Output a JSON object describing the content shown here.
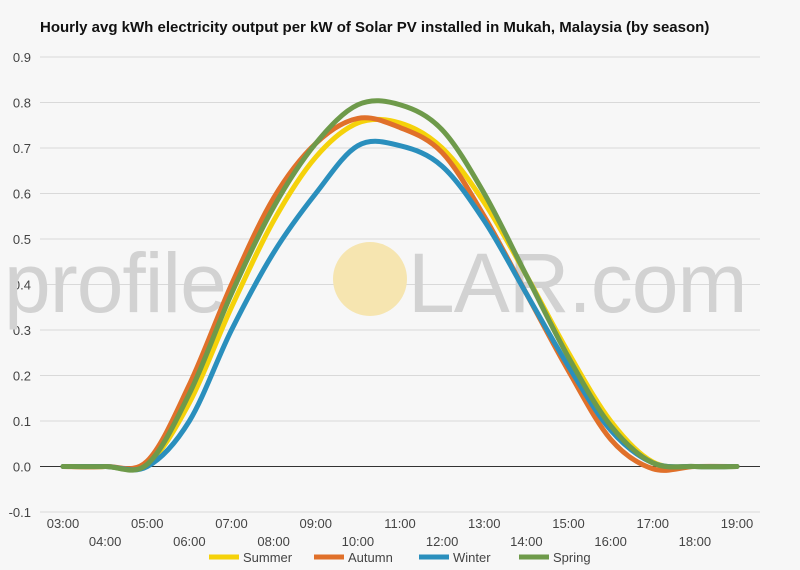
{
  "chart_data": {
    "type": "line",
    "title": "Hourly avg kWh electricity output per kW of Solar PV installed in Mukah, Malaysia (by season)",
    "xlabel": "",
    "ylabel": "",
    "categories": [
      "03:00",
      "04:00",
      "05:00",
      "06:00",
      "07:00",
      "08:00",
      "09:00",
      "10:00",
      "11:00",
      "12:00",
      "13:00",
      "14:00",
      "15:00",
      "16:00",
      "17:00",
      "18:00",
      "19:00"
    ],
    "ylim": [
      -0.1,
      0.9
    ],
    "yticks": [
      "-0.1",
      "0.0",
      "0.1",
      "0.2",
      "0.3",
      "0.4",
      "0.5",
      "0.6",
      "0.7",
      "0.8",
      "0.9"
    ],
    "grid": true,
    "legend_position": "bottom",
    "series": [
      {
        "name": "Summer",
        "color": "#f5d20a",
        "values": [
          0.0,
          0.0,
          0.005,
          0.14,
          0.35,
          0.54,
          0.68,
          0.755,
          0.755,
          0.7,
          0.58,
          0.42,
          0.25,
          0.1,
          0.01,
          0.0,
          0.0
        ]
      },
      {
        "name": "Autumn",
        "color": "#e0702a",
        "values": [
          0.0,
          0.0,
          0.012,
          0.18,
          0.4,
          0.59,
          0.71,
          0.765,
          0.745,
          0.69,
          0.55,
          0.38,
          0.21,
          0.06,
          -0.005,
          0.0,
          0.0
        ]
      },
      {
        "name": "Winter",
        "color": "#2a8fbd",
        "values": [
          0.0,
          0.0,
          0.0,
          0.1,
          0.3,
          0.47,
          0.6,
          0.705,
          0.705,
          0.66,
          0.54,
          0.38,
          0.22,
          0.08,
          0.008,
          0.0,
          0.0
        ]
      },
      {
        "name": "Spring",
        "color": "#6e9a4a",
        "values": [
          0.0,
          0.0,
          0.005,
          0.16,
          0.38,
          0.57,
          0.71,
          0.795,
          0.795,
          0.74,
          0.6,
          0.42,
          0.24,
          0.09,
          0.008,
          0.0,
          0.0
        ]
      }
    ]
  },
  "watermark": {
    "left": "profile",
    "right": "LAR.com",
    "sun_color": "#f6e5b0"
  }
}
